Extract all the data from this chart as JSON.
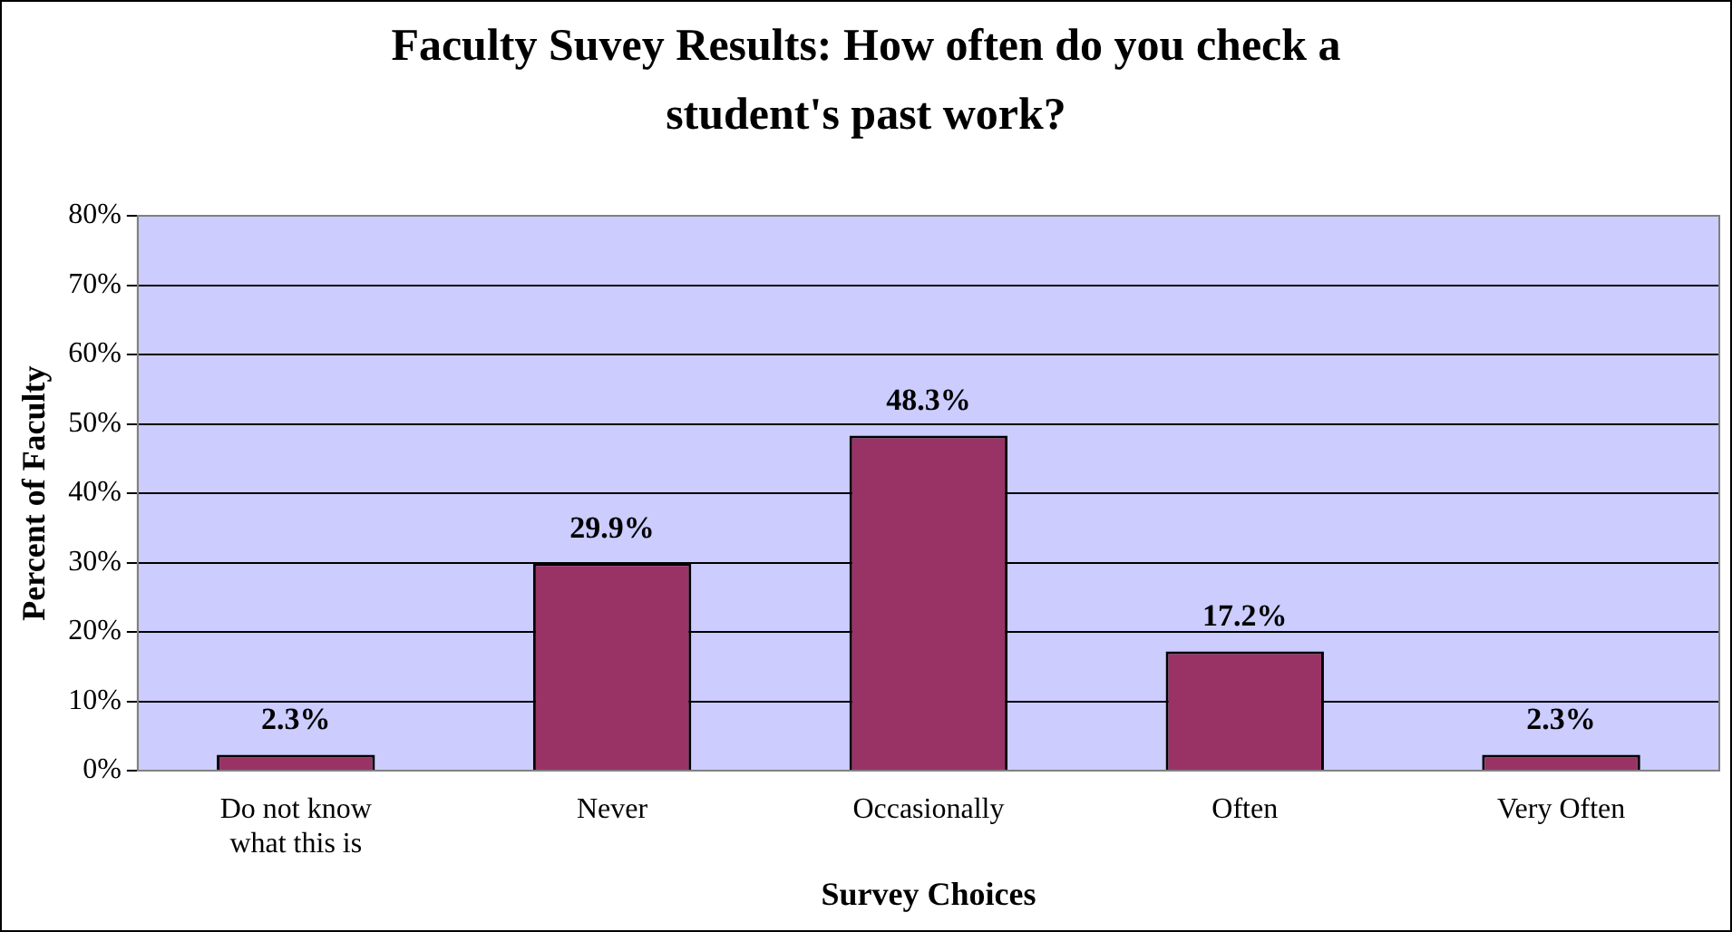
{
  "chart_data": {
    "type": "bar",
    "title": "Faculty Suvey Results: How often do you check a student's past work?",
    "xlabel": "Survey Choices",
    "ylabel": "Percent of Faculty",
    "categories": [
      "Do not know what this is",
      "Never",
      "Occasionally",
      "Often",
      "Very Often"
    ],
    "values": [
      2.3,
      29.9,
      48.3,
      17.2,
      2.3
    ],
    "color": "#993366",
    "value_labels": [
      "2.3%",
      "29.9%",
      "48.3%",
      "17.2%",
      "2.3%"
    ],
    "ylim": [
      0,
      80
    ],
    "yticks": [
      {
        "value": 0,
        "label": "0%"
      },
      {
        "value": 10,
        "label": "10%"
      },
      {
        "value": 20,
        "label": "20%"
      },
      {
        "value": 30,
        "label": "30%"
      },
      {
        "value": 40,
        "label": "40%"
      },
      {
        "value": 50,
        "label": "50%"
      },
      {
        "value": 60,
        "label": "60%"
      },
      {
        "value": 70,
        "label": "70%"
      },
      {
        "value": 80,
        "label": "80%"
      }
    ],
    "grid": "y",
    "legend": false
  }
}
